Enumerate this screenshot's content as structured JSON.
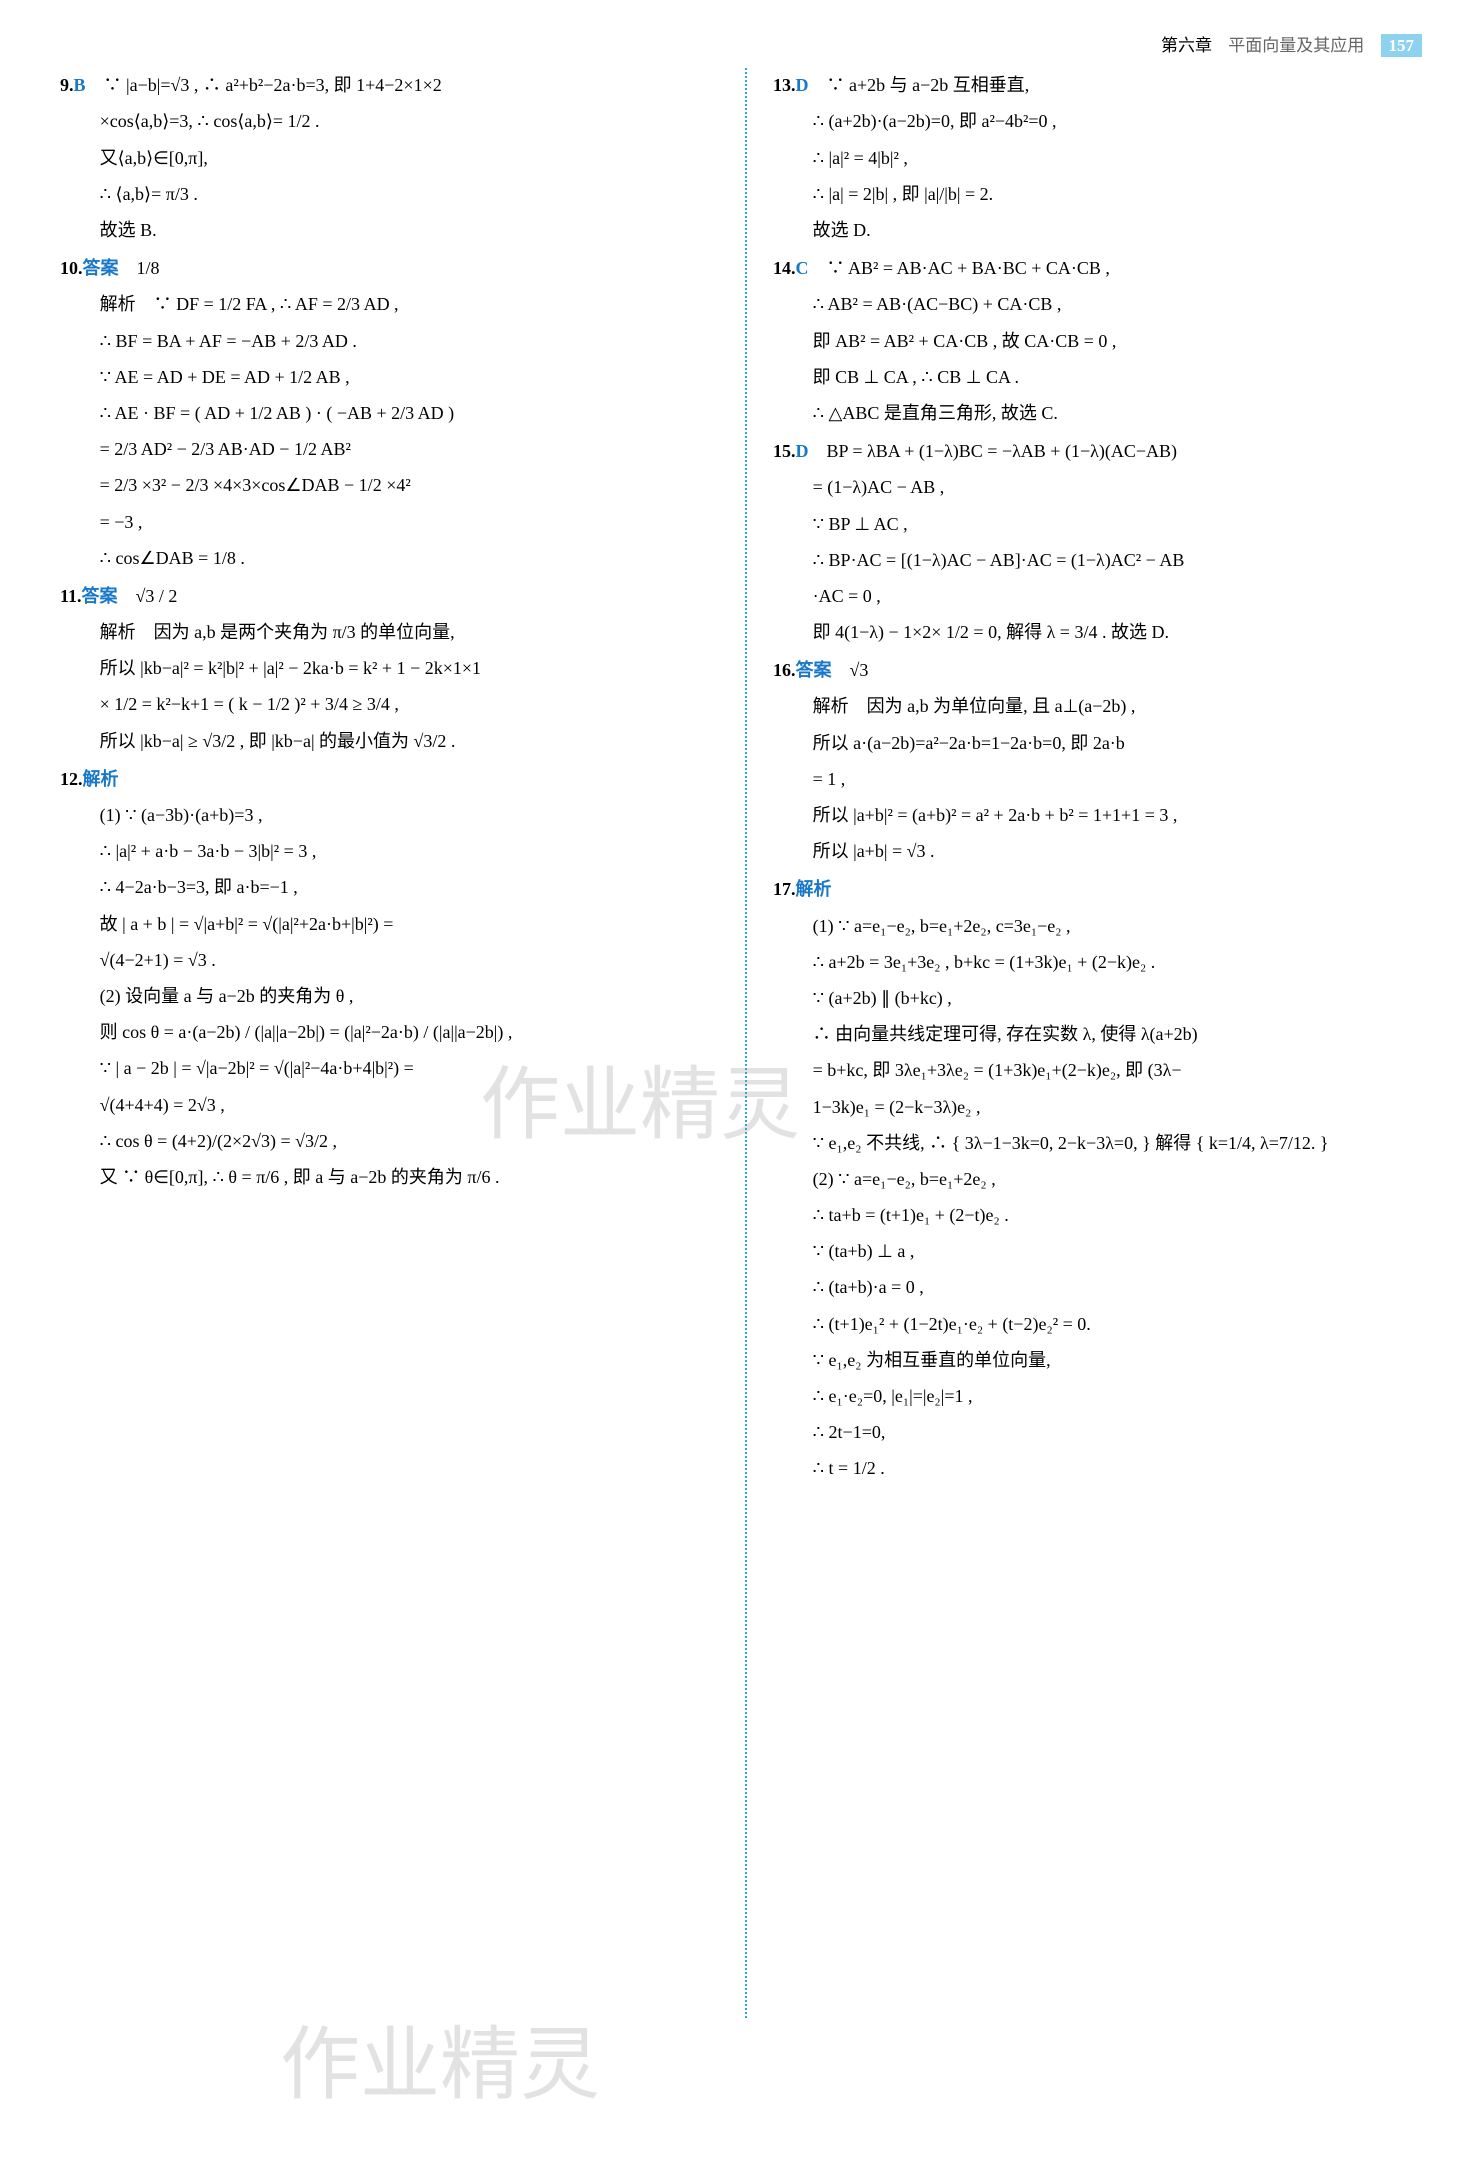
{
  "header": {
    "chapter": "第六章",
    "title": "平面向量及其应用",
    "page_number": "157",
    "accent_color": "#8dd3f0",
    "divider_color": "#29a9e0",
    "answer_color": "#1978c8"
  },
  "watermarks": {
    "wm1": "作业精灵",
    "wm2": "作业精灵"
  },
  "left_column": [
    {
      "num": "9.",
      "ans": "B",
      "lines": [
        "∵ |a−b|=√3 , ∴ a²+b²−2a·b=3, 即 1+4−2×1×2",
        "×cos⟨a,b⟩=3, ∴ cos⟨a,b⟩= 1/2 .",
        "又⟨a,b⟩∈[0,π],",
        "∴ ⟨a,b⟩= π/3 .",
        "故选 B."
      ]
    },
    {
      "num": "10.",
      "ans": "答案",
      "ans_val": "1/8",
      "lines": [
        "解析　∵ DF = 1/2 FA , ∴ AF = 2/3 AD ,",
        "∴ BF = BA + AF = −AB + 2/3 AD .",
        "∵ AE = AD + DE = AD + 1/2 AB ,",
        "∴ AE · BF = ( AD + 1/2 AB ) · ( −AB + 2/3 AD )",
        "= 2/3 AD² − 2/3 AB·AD − 1/2 AB²",
        "= 2/3 ×3² − 2/3 ×4×3×cos∠DAB − 1/2 ×4²",
        "= −3 ,",
        "∴ cos∠DAB = 1/8 ."
      ]
    },
    {
      "num": "11.",
      "ans": "答案",
      "ans_val": "√3 / 2",
      "lines": [
        "解析　因为 a,b 是两个夹角为 π/3 的单位向量,",
        "所以 |kb−a|² = k²|b|² + |a|² − 2ka·b = k² + 1 − 2k×1×1",
        "× 1/2 = k²−k+1 = ( k − 1/2 )² + 3/4 ≥ 3/4 ,",
        "所以 |kb−a| ≥ √3/2 , 即 |kb−a| 的最小值为 √3/2 ."
      ]
    },
    {
      "num": "12.",
      "ans": "解析",
      "lines": [
        "(1) ∵ (a−3b)·(a+b)=3 ,",
        "∴ |a|² + a·b − 3a·b − 3|b|² = 3 ,",
        "∴ 4−2a·b−3=3, 即 a·b=−1 ,",
        "故 | a + b | = √|a+b|² = √(|a|²+2a·b+|b|²) =",
        "√(4−2+1) = √3 .",
        "(2) 设向量 a 与 a−2b 的夹角为 θ ,",
        "则 cos θ = a·(a−2b) / (|a||a−2b|) = (|a|²−2a·b) / (|a||a−2b|) ,",
        "∵ | a − 2b | = √|a−2b|² = √(|a|²−4a·b+4|b|²) =",
        "√(4+4+4) = 2√3 ,",
        "∴ cos θ = (4+2)/(2×2√3) = √3/2 ,",
        "又 ∵ θ∈[0,π], ∴ θ = π/6 , 即 a 与 a−2b 的夹角为 π/6 ."
      ]
    }
  ],
  "right_column": [
    {
      "num": "13.",
      "ans": "D",
      "lines": [
        "∵ a+2b 与 a−2b 互相垂直,",
        "∴ (a+2b)·(a−2b)=0, 即 a²−4b²=0 ,",
        "∴ |a|² = 4|b|² ,",
        "∴ |a| = 2|b| , 即 |a|/|b| = 2.",
        "故选 D."
      ]
    },
    {
      "num": "14.",
      "ans": "C",
      "lines": [
        "∵ AB² = AB·AC + BA·BC + CA·CB ,",
        "∴ AB² = AB·(AC−BC) + CA·CB ,",
        "即 AB² = AB² + CA·CB , 故 CA·CB = 0 ,",
        "即 CB ⊥ CA , ∴ CB ⊥ CA .",
        "∴ △ABC 是直角三角形, 故选 C."
      ]
    },
    {
      "num": "15.",
      "ans": "D",
      "lines": [
        "BP = λBA + (1−λ)BC = −λAB + (1−λ)(AC−AB)",
        "= (1−λ)AC − AB ,",
        "∵ BP ⊥ AC ,",
        "∴ BP·AC = [(1−λ)AC − AB]·AC = (1−λ)AC² − AB",
        "·AC = 0 ,",
        "即 4(1−λ) − 1×2× 1/2 = 0, 解得 λ = 3/4 .  故选 D."
      ]
    },
    {
      "num": "16.",
      "ans": "答案",
      "ans_val": "√3",
      "lines": [
        "解析　因为 a,b 为单位向量, 且 a⊥(a−2b) ,",
        "所以 a·(a−2b)=a²−2a·b=1−2a·b=0, 即 2a·b",
        "= 1 ,",
        "所以 |a+b|² = (a+b)² = a² + 2a·b + b² = 1+1+1 = 3 ,",
        "所以 |a+b| = √3 ."
      ]
    },
    {
      "num": "17.",
      "ans": "解析",
      "lines": [
        "(1) ∵ a=e₁−e₂, b=e₁+2e₂, c=3e₁−e₂ ,",
        "∴ a+2b = 3e₁+3e₂ , b+kc = (1+3k)e₁ + (2−k)e₂ .",
        "∵ (a+2b) ∥ (b+kc) ,",
        "∴ 由向量共线定理可得, 存在实数 λ, 使得 λ(a+2b)",
        "= b+kc, 即 3λe₁+3λe₂ = (1+3k)e₁+(2−k)e₂, 即 (3λ−",
        "1−3k)e₁ = (2−k−3λ)e₂ ,",
        "∵ e₁,e₂ 不共线, ∴ { 3λ−1−3k=0, 2−k−3λ=0, } 解得 { k=1/4, λ=7/12. }",
        "(2) ∵ a=e₁−e₂, b=e₁+2e₂ ,",
        "∴ ta+b = (t+1)e₁ + (2−t)e₂ .",
        "∵ (ta+b) ⊥ a ,",
        "∴ (ta+b)·a = 0 ,",
        "∴ (t+1)e₁² + (1−2t)e₁·e₂ + (t−2)e₂² = 0.",
        "∵ e₁,e₂ 为相互垂直的单位向量,",
        "∴ e₁·e₂=0, |e₁|=|e₂|=1 ,",
        "∴ 2t−1=0,",
        "∴ t = 1/2 ."
      ]
    }
  ]
}
